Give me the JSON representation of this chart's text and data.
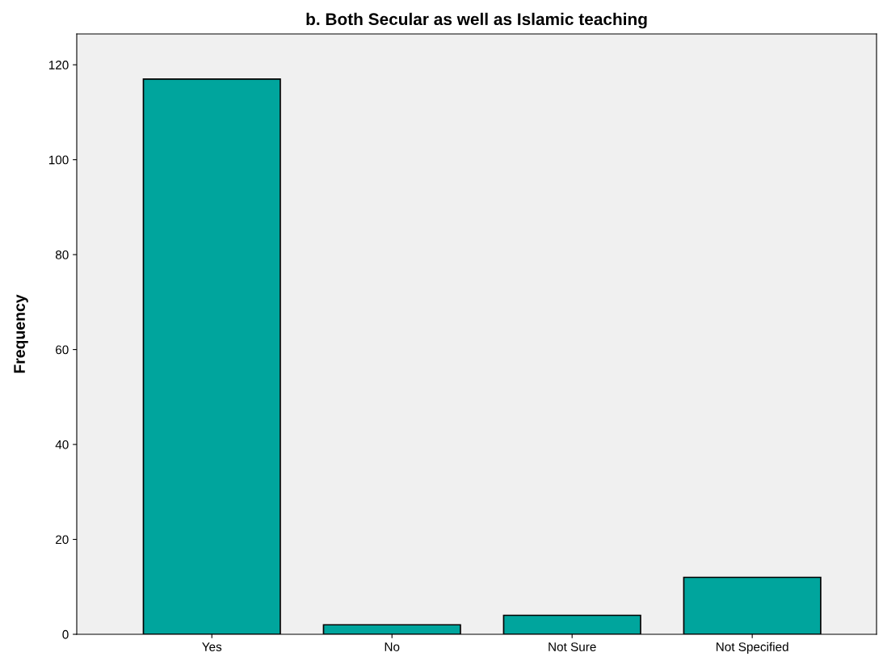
{
  "chart_data": {
    "type": "bar",
    "title": "b. Both Secular as well as Islamic teaching",
    "ylabel": "Frequency",
    "categories": [
      "Yes",
      "No",
      "Not Sure",
      "Not Specified"
    ],
    "values": [
      117,
      2,
      4,
      12
    ],
    "color": "#00a59d",
    "ylim": [
      0,
      126.5
    ],
    "yticks": [
      0,
      20,
      40,
      60,
      80,
      100,
      120
    ],
    "grid": false
  }
}
